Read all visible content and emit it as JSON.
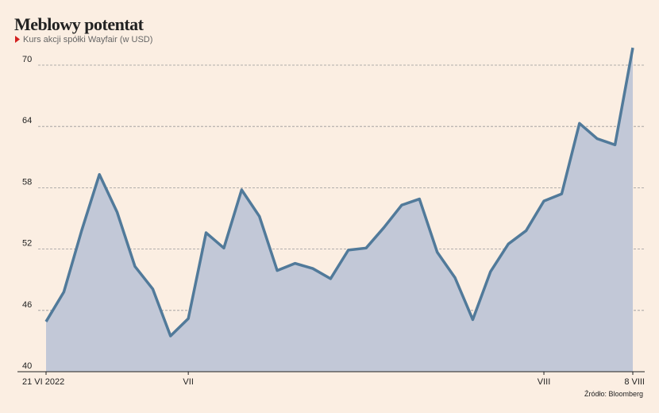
{
  "chart_data": {
    "type": "area",
    "title": "Meblowy potentat",
    "subtitle": "Kurs akcji spółki Wayfair (w USD)",
    "source": "Źródło: Bloomberg",
    "categories": [
      "21 VI 2022",
      null,
      null,
      null,
      null,
      null,
      null,
      null,
      "VII",
      null,
      null,
      null,
      null,
      null,
      null,
      null,
      null,
      null,
      null,
      null,
      null,
      null,
      null,
      null,
      null,
      null,
      null,
      null,
      "VIII",
      null,
      null,
      null,
      null,
      "8 VIII"
    ],
    "values": [
      44.9,
      47.8,
      53.8,
      59.3,
      55.6,
      50.3,
      48.1,
      43.5,
      45.2,
      53.6,
      52.1,
      57.8,
      55.2,
      49.9,
      50.6,
      50.1,
      49.1,
      51.9,
      52.1,
      54.1,
      56.3,
      56.9,
      51.7,
      49.2,
      45.1,
      49.8,
      52.5,
      53.8,
      56.7,
      57.4,
      64.3,
      62.8,
      62.2,
      71.7
    ],
    "color": "#517a9a",
    "fill": "#c2c8d7",
    "ylim": [
      40,
      70
    ],
    "yticks": [
      40,
      46,
      52,
      58,
      64,
      70
    ],
    "grid": true
  }
}
